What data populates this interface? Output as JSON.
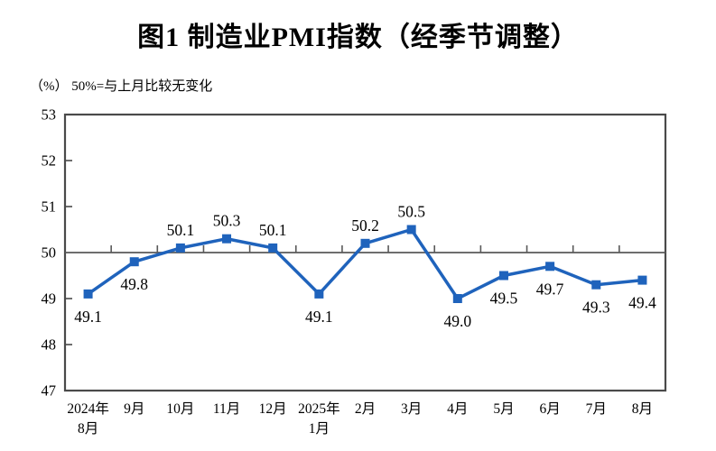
{
  "title": "图1  制造业PMI指数（经季节调整）",
  "unit_note": "（%） 50%=与上月比较无变化",
  "colors": {
    "line": "#1F63BC",
    "marker": "#1F63BC",
    "axis": "#4a4a4a",
    "reference_line": "#595959",
    "text": "#000000"
  },
  "chart_data": {
    "type": "line",
    "title": "图1  制造业PMI指数（经季节调整）",
    "unit_label": "（%） 50%=与上月比较无变化",
    "categories": [
      [
        "2024年",
        "8月"
      ],
      [
        "9月"
      ],
      [
        "10月"
      ],
      [
        "11月"
      ],
      [
        "12月"
      ],
      [
        "2025年",
        "1月"
      ],
      [
        "2月"
      ],
      [
        "3月"
      ],
      [
        "4月"
      ],
      [
        "5月"
      ],
      [
        "6月"
      ],
      [
        "7月"
      ],
      [
        "8月"
      ]
    ],
    "values": [
      49.1,
      49.8,
      50.1,
      50.3,
      50.1,
      49.1,
      50.2,
      50.5,
      49.0,
      49.5,
      49.7,
      49.3,
      49.4
    ],
    "data_labels": [
      "49.1",
      "49.8",
      "50.1",
      "50.3",
      "50.1",
      "49.1",
      "50.2",
      "50.5",
      "49.0",
      "49.5",
      "49.7",
      "49.3",
      "49.4"
    ],
    "ylim": [
      47,
      53
    ],
    "ytick_step": 1,
    "yticks": [
      47,
      48,
      49,
      50,
      51,
      52,
      53
    ],
    "reference_line": 50,
    "marker": "square",
    "grid": false,
    "legend": "none",
    "xlabel": "",
    "ylabel": "（%）"
  }
}
